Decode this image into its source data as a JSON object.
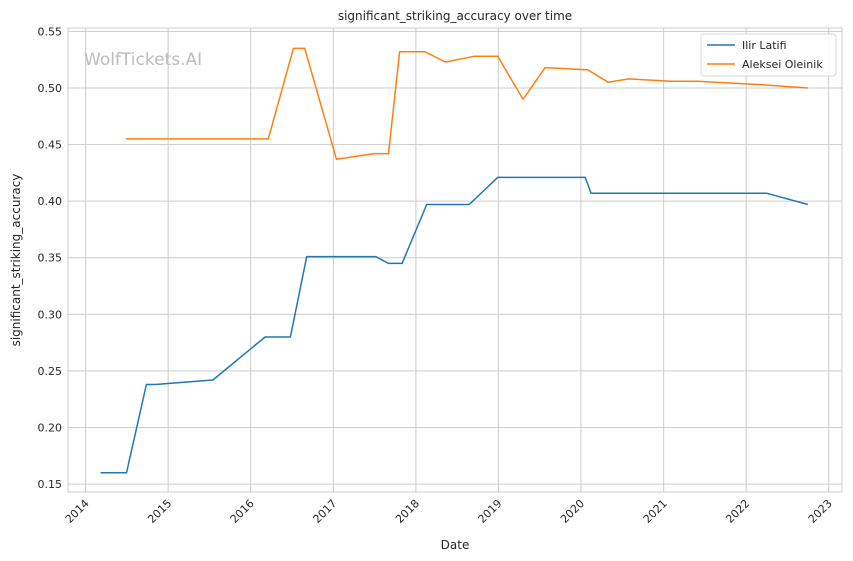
{
  "chart_data": {
    "type": "line",
    "title": "significant_striking_accuracy over time",
    "xlabel": "Date",
    "ylabel": "significant_striking_accuracy",
    "watermark": "WolfTickets.AI",
    "xlim": [
      "2013-10-15",
      "2023-03-01"
    ],
    "ylim": [
      0.143,
      0.553
    ],
    "x_ticks": [
      "2014-01-01",
      "2015-01-01",
      "2016-01-01",
      "2017-01-01",
      "2018-01-01",
      "2019-01-01",
      "2020-01-01",
      "2021-01-01",
      "2022-01-01",
      "2023-01-01"
    ],
    "x_tick_labels": [
      "2014",
      "2015",
      "2016",
      "2017",
      "2018",
      "2019",
      "2020",
      "2021",
      "2022",
      "2023"
    ],
    "y_ticks": [
      0.15,
      0.2,
      0.25,
      0.3,
      0.35,
      0.4,
      0.45,
      0.5,
      0.55
    ],
    "y_tick_labels": [
      "0.15",
      "0.20",
      "0.25",
      "0.30",
      "0.35",
      "0.40",
      "0.45",
      "0.50",
      "0.55"
    ],
    "grid": true,
    "legend_position": "top-right",
    "series": [
      {
        "name": "Ilir Latifi",
        "color": "#1f77b4",
        "points": [
          [
            "2014-03-08",
            0.16
          ],
          [
            "2014-07-01",
            0.16
          ],
          [
            "2014-09-27",
            0.238
          ],
          [
            "2014-11-05",
            0.238
          ],
          [
            "2015-07-18",
            0.242
          ],
          [
            "2016-03-05",
            0.28
          ],
          [
            "2016-06-25",
            0.28
          ],
          [
            "2016-09-05",
            0.351
          ],
          [
            "2017-07-08",
            0.351
          ],
          [
            "2017-09-02",
            0.345
          ],
          [
            "2017-11-01",
            0.345
          ],
          [
            "2018-02-18",
            0.397
          ],
          [
            "2018-08-25",
            0.397
          ],
          [
            "2018-12-29",
            0.421
          ],
          [
            "2019-07-20",
            0.421
          ],
          [
            "2020-01-20",
            0.421
          ],
          [
            "2020-02-15",
            0.407
          ],
          [
            "2021-01-01",
            0.407
          ],
          [
            "2022-04-01",
            0.407
          ],
          [
            "2022-10-01",
            0.397
          ]
        ]
      },
      {
        "name": "Aleksei Oleinik",
        "color": "#ff7f0e",
        "points": [
          [
            "2014-06-28",
            0.455
          ],
          [
            "2016-03-19",
            0.455
          ],
          [
            "2016-07-08",
            0.535
          ],
          [
            "2016-08-27",
            0.535
          ],
          [
            "2017-01-15",
            0.437
          ],
          [
            "2017-06-30",
            0.442
          ],
          [
            "2017-09-02",
            0.442
          ],
          [
            "2017-10-21",
            0.532
          ],
          [
            "2018-02-10",
            0.532
          ],
          [
            "2018-05-12",
            0.523
          ],
          [
            "2018-09-15",
            0.528
          ],
          [
            "2018-12-29",
            0.528
          ],
          [
            "2019-04-20",
            0.49
          ],
          [
            "2019-07-27",
            0.518
          ],
          [
            "2020-02-01",
            0.516
          ],
          [
            "2020-05-01",
            0.505
          ],
          [
            "2020-08-01",
            0.508
          ],
          [
            "2021-02-01",
            0.506
          ],
          [
            "2021-06-01",
            0.506
          ],
          [
            "2022-03-01",
            0.503
          ],
          [
            "2022-10-01",
            0.5
          ]
        ]
      }
    ]
  }
}
